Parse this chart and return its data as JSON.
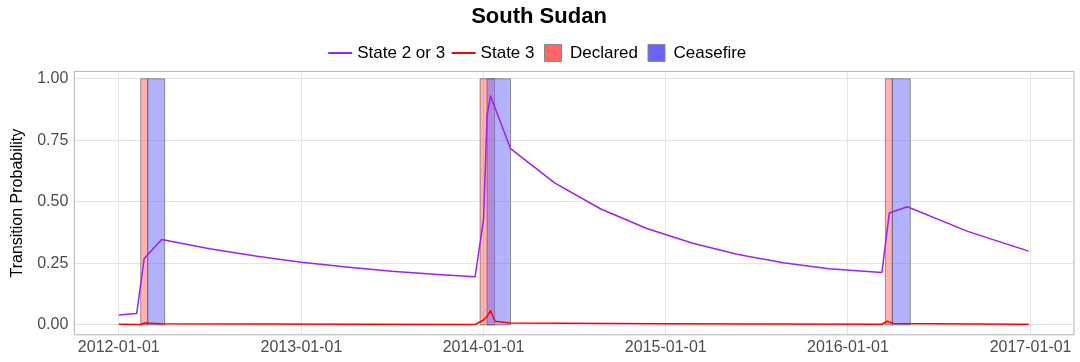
{
  "chart_data": {
    "type": "line",
    "title": "South Sudan",
    "ylabel": "Transition Probability",
    "xlim": [
      "2011-10-04",
      "2017-03-29"
    ],
    "xticks": [
      "2012-01-01",
      "2013-01-01",
      "2014-01-01",
      "2015-01-01",
      "2016-01-01",
      "2017-01-01"
    ],
    "ylim": [
      -0.04,
      1.03
    ],
    "yticks": [
      {
        "value": 0,
        "label": "0.00"
      },
      {
        "value": 0.25,
        "label": "0.25"
      },
      {
        "value": 0.5,
        "label": "0.50"
      },
      {
        "value": 0.75,
        "label": "0.75"
      },
      {
        "value": 1,
        "label": "1.00"
      }
    ],
    "grid": true,
    "legend": "top",
    "marker": "none",
    "line_style": "solid",
    "series": [
      {
        "name": "State 2 or 3",
        "color": "#a020f0",
        "x": [
          "2012-01-01",
          "2012-02-06",
          "2012-02-21",
          "2012-03-27",
          "2012-07-01",
          "2012-10-01",
          "2013-01-01",
          "2013-04-01",
          "2013-07-01",
          "2013-10-01",
          "2013-12-15",
          "2014-01-01",
          "2014-01-08",
          "2014-01-15",
          "2014-02-24",
          "2014-05-24",
          "2014-08-24",
          "2014-11-24",
          "2015-02-24",
          "2015-05-24",
          "2015-08-24",
          "2015-11-24",
          "2016-03-09",
          "2016-03-24",
          "2016-04-29",
          "2016-08-28",
          "2016-12-28"
        ],
        "values": [
          0.04,
          0.047,
          0.27,
          0.347,
          0.31,
          0.28,
          0.255,
          0.235,
          0.218,
          0.205,
          0.196,
          0.43,
          0.85,
          0.93,
          0.716,
          0.576,
          0.471,
          0.392,
          0.332,
          0.287,
          0.253,
          0.228,
          0.213,
          0.455,
          0.48,
          0.38,
          0.3
        ]
      },
      {
        "name": "State 3",
        "color": "#ff0000",
        "x": [
          "2012-01-01",
          "2012-02-14",
          "2012-02-21",
          "2012-03-27",
          "2013-12-15",
          "2014-01-01",
          "2014-01-08",
          "2014-01-15",
          "2014-01-24",
          "2014-02-24",
          "2015-01-01",
          "2016-03-09",
          "2016-03-20",
          "2016-04-01",
          "2016-12-28"
        ],
        "values": [
          0.003,
          0.002,
          0.008,
          0.005,
          0.002,
          0.02,
          0.035,
          0.058,
          0.015,
          0.008,
          0.005,
          0.003,
          0.015,
          0.006,
          0.003
        ]
      }
    ],
    "bands": [
      {
        "axis": "x",
        "from": "2012-02-14",
        "to": "2012-02-28",
        "label": "Declared",
        "color": "#ff6666"
      },
      {
        "axis": "x",
        "from": "2012-02-28",
        "to": "2012-04-02",
        "label": "Ceasefire",
        "color": "#6666ff"
      },
      {
        "axis": "x",
        "from": "2013-12-25",
        "to": "2014-01-23",
        "color": "#ff6666"
      },
      {
        "axis": "x",
        "from": "2014-01-08",
        "to": "2014-02-24",
        "color": "#6666ff"
      },
      {
        "axis": "x",
        "from": "2016-03-16",
        "to": "2016-03-30",
        "color": "#ff6666"
      },
      {
        "axis": "x",
        "from": "2016-03-30",
        "to": "2016-05-05",
        "color": "#6666ff"
      }
    ]
  }
}
